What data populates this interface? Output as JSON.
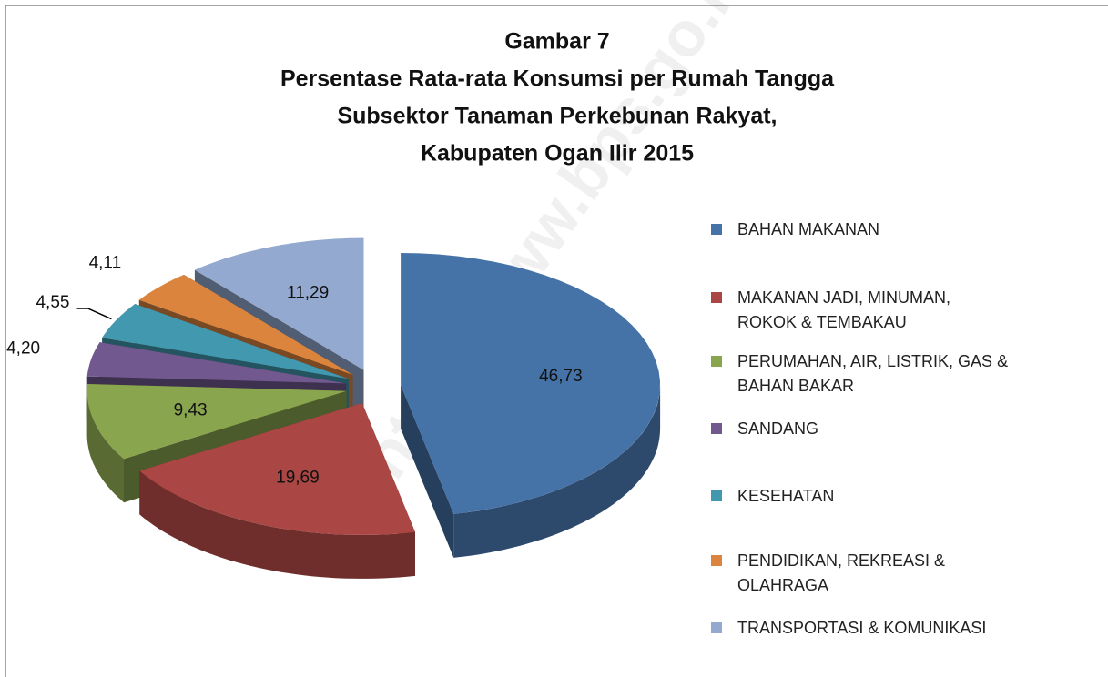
{
  "chart_data": {
    "type": "pie3d",
    "title": [
      "Gambar 7",
      "Persentase Rata-rata Konsumsi per Rumah Tangga",
      "Subsektor Tanaman Perkebunan Rakyat,",
      "Kabupaten Ogan Ilir 2015"
    ],
    "watermark": "http://www.bps.go.id",
    "categories": [
      "BAHAN MAKANAN",
      "MAKANAN JADI, MINUMAN,\nROKOK & TEMBAKAU",
      "PERUMAHAN, AIR, LISTRIK, GAS &\nBAHAN BAKAR",
      "SANDANG",
      "KESEHATAN",
      "PENDIDIKAN, REKREASI &\nOLAHRAGA",
      "TRANSPORTASI & KOMUNIKASI"
    ],
    "values": [
      46.73,
      19.69,
      9.43,
      4.2,
      4.55,
      4.11,
      11.29
    ],
    "value_labels": [
      "46,73",
      "19,69",
      "9,43",
      "4,20",
      "4,55",
      "4,11",
      "11,29"
    ],
    "colors": [
      "#4572a7",
      "#aa4643",
      "#89a54e",
      "#71588f",
      "#4198af",
      "#db843d",
      "#93a9cf"
    ],
    "legend": "right"
  }
}
